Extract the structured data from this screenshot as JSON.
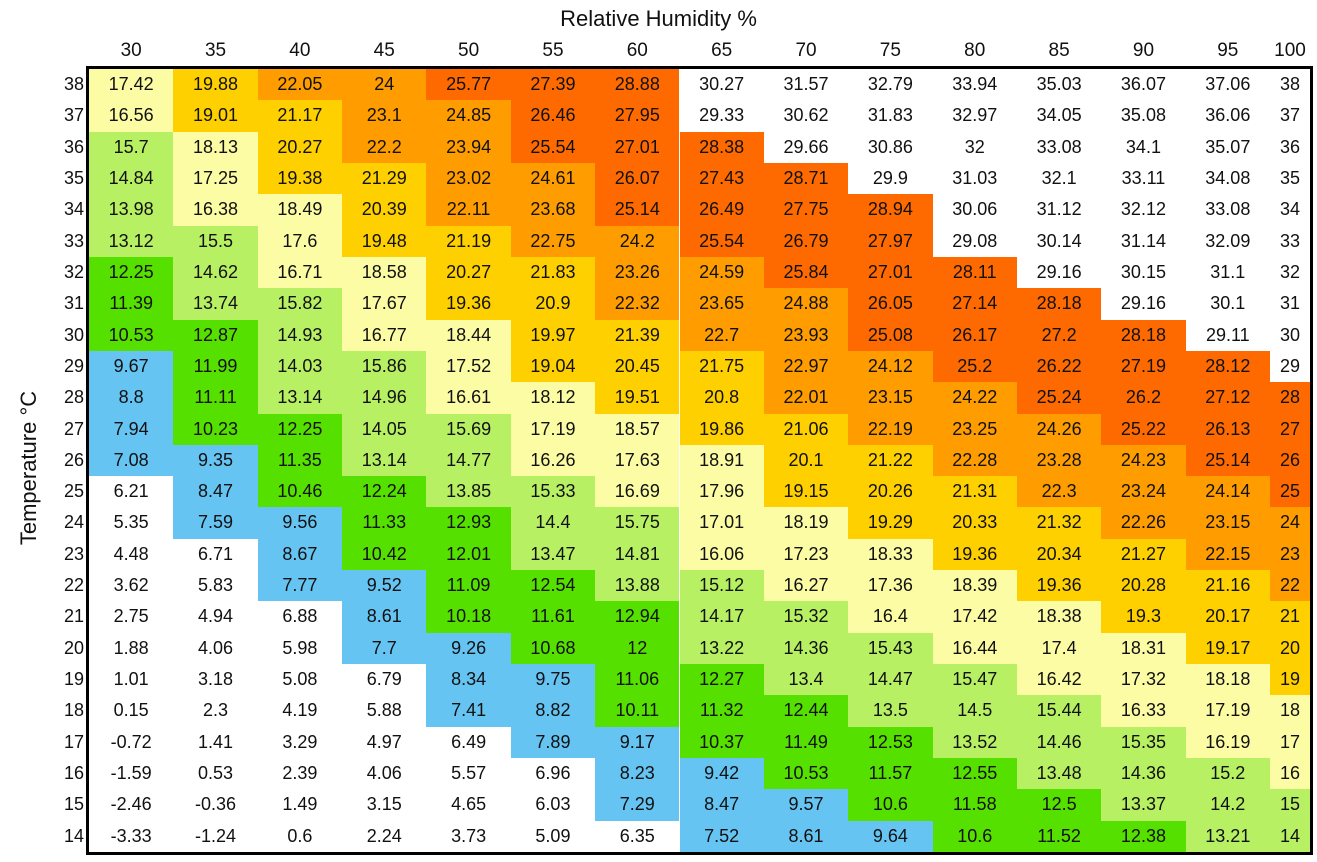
{
  "chart_data": {
    "type": "heatmap",
    "xlabel": "Relative Humidity %",
    "ylabel": "Temperature °C",
    "x": [
      30,
      35,
      40,
      45,
      50,
      55,
      60,
      65,
      70,
      75,
      80,
      85,
      90,
      95,
      100
    ],
    "y": [
      38,
      37,
      36,
      35,
      34,
      33,
      32,
      31,
      30,
      29,
      28,
      27,
      26,
      25,
      24,
      23,
      22,
      21,
      20,
      19,
      18,
      17,
      16,
      15,
      14
    ],
    "values": [
      [
        17.42,
        19.88,
        22.05,
        24,
        25.77,
        27.39,
        28.88,
        30.27,
        31.57,
        32.79,
        33.94,
        35.03,
        36.07,
        37.06,
        38
      ],
      [
        16.56,
        19.01,
        21.17,
        23.1,
        24.85,
        26.46,
        27.95,
        29.33,
        30.62,
        31.83,
        32.97,
        34.05,
        35.08,
        36.06,
        37
      ],
      [
        15.7,
        18.13,
        20.27,
        22.2,
        23.94,
        25.54,
        27.01,
        28.38,
        29.66,
        30.86,
        32,
        33.08,
        34.1,
        35.07,
        36
      ],
      [
        14.84,
        17.25,
        19.38,
        21.29,
        23.02,
        24.61,
        26.07,
        27.43,
        28.71,
        29.9,
        31.03,
        32.1,
        33.11,
        34.08,
        35
      ],
      [
        13.98,
        16.38,
        18.49,
        20.39,
        22.11,
        23.68,
        25.14,
        26.49,
        27.75,
        28.94,
        30.06,
        31.12,
        32.12,
        33.08,
        34
      ],
      [
        13.12,
        15.5,
        17.6,
        19.48,
        21.19,
        22.75,
        24.2,
        25.54,
        26.79,
        27.97,
        29.08,
        30.14,
        31.14,
        32.09,
        33
      ],
      [
        12.25,
        14.62,
        16.71,
        18.58,
        20.27,
        21.83,
        23.26,
        24.59,
        25.84,
        27.01,
        28.11,
        29.16,
        30.15,
        31.1,
        32
      ],
      [
        11.39,
        13.74,
        15.82,
        17.67,
        19.36,
        20.9,
        22.32,
        23.65,
        24.88,
        26.05,
        27.14,
        28.18,
        29.16,
        30.1,
        31
      ],
      [
        10.53,
        12.87,
        14.93,
        16.77,
        18.44,
        19.97,
        21.39,
        22.7,
        23.93,
        25.08,
        26.17,
        27.2,
        28.18,
        29.11,
        30
      ],
      [
        9.67,
        11.99,
        14.03,
        15.86,
        17.52,
        19.04,
        20.45,
        21.75,
        22.97,
        24.12,
        25.2,
        26.22,
        27.19,
        28.12,
        29
      ],
      [
        8.8,
        11.11,
        13.14,
        14.96,
        16.61,
        18.12,
        19.51,
        20.8,
        22.01,
        23.15,
        24.22,
        25.24,
        26.2,
        27.12,
        28
      ],
      [
        7.94,
        10.23,
        12.25,
        14.05,
        15.69,
        17.19,
        18.57,
        19.86,
        21.06,
        22.19,
        23.25,
        24.26,
        25.22,
        26.13,
        27
      ],
      [
        7.08,
        9.35,
        11.35,
        13.14,
        14.77,
        16.26,
        17.63,
        18.91,
        20.1,
        21.22,
        22.28,
        23.28,
        24.23,
        25.14,
        26
      ],
      [
        6.21,
        8.47,
        10.46,
        12.24,
        13.85,
        15.33,
        16.69,
        17.96,
        19.15,
        20.26,
        21.31,
        22.3,
        23.24,
        24.14,
        25
      ],
      [
        5.35,
        7.59,
        9.56,
        11.33,
        12.93,
        14.4,
        15.75,
        17.01,
        18.19,
        19.29,
        20.33,
        21.32,
        22.26,
        23.15,
        24
      ],
      [
        4.48,
        6.71,
        8.67,
        10.42,
        12.01,
        13.47,
        14.81,
        16.06,
        17.23,
        18.33,
        19.36,
        20.34,
        21.27,
        22.15,
        23
      ],
      [
        3.62,
        5.83,
        7.77,
        9.52,
        11.09,
        12.54,
        13.88,
        15.12,
        16.27,
        17.36,
        18.39,
        19.36,
        20.28,
        21.16,
        22
      ],
      [
        2.75,
        4.94,
        6.88,
        8.61,
        10.18,
        11.61,
        12.94,
        14.17,
        15.32,
        16.4,
        17.42,
        18.38,
        19.3,
        20.17,
        21
      ],
      [
        1.88,
        4.06,
        5.98,
        7.7,
        9.26,
        10.68,
        12,
        13.22,
        14.36,
        15.43,
        16.44,
        17.4,
        18.31,
        19.17,
        20
      ],
      [
        1.01,
        3.18,
        5.08,
        6.79,
        8.34,
        9.75,
        11.06,
        12.27,
        13.4,
        14.47,
        15.47,
        16.42,
        17.32,
        18.18,
        19
      ],
      [
        0.15,
        2.3,
        4.19,
        5.88,
        7.41,
        8.82,
        10.11,
        11.32,
        12.44,
        13.5,
        14.5,
        15.44,
        16.33,
        17.19,
        18
      ],
      [
        -0.72,
        1.41,
        3.29,
        4.97,
        6.49,
        7.89,
        9.17,
        10.37,
        11.49,
        12.53,
        13.52,
        14.46,
        15.35,
        16.19,
        17
      ],
      [
        -1.59,
        0.53,
        2.39,
        4.06,
        5.57,
        6.96,
        8.23,
        9.42,
        10.53,
        11.57,
        12.55,
        13.48,
        14.36,
        15.2,
        16
      ],
      [
        -2.46,
        -0.36,
        1.49,
        3.15,
        4.65,
        6.03,
        7.29,
        8.47,
        9.57,
        10.6,
        11.58,
        12.5,
        13.37,
        14.2,
        15
      ],
      [
        -3.33,
        -1.24,
        0.6,
        2.24,
        3.73,
        5.09,
        6.35,
        7.52,
        8.61,
        9.64,
        10.6,
        11.52,
        12.38,
        13.21,
        14
      ]
    ],
    "color_bands": [
      {
        "min": -100,
        "max": 7,
        "color": "#ffffff"
      },
      {
        "min": 7,
        "max": 10,
        "color": "#66c4f2"
      },
      {
        "min": 10,
        "max": 13,
        "color": "#55e000"
      },
      {
        "min": 13,
        "max": 16,
        "color": "#b8f064"
      },
      {
        "min": 16,
        "max": 19,
        "color": "#fcfca4"
      },
      {
        "min": 19,
        "max": 22,
        "color": "#ffd000"
      },
      {
        "min": 22,
        "max": 25,
        "color": "#ff9d00"
      },
      {
        "min": 25,
        "max": 29,
        "color": "#ff6a00"
      },
      {
        "min": 29,
        "max": 1000,
        "color": "#ffffff"
      }
    ],
    "last_column_color": "#ffffff",
    "grid": false
  }
}
